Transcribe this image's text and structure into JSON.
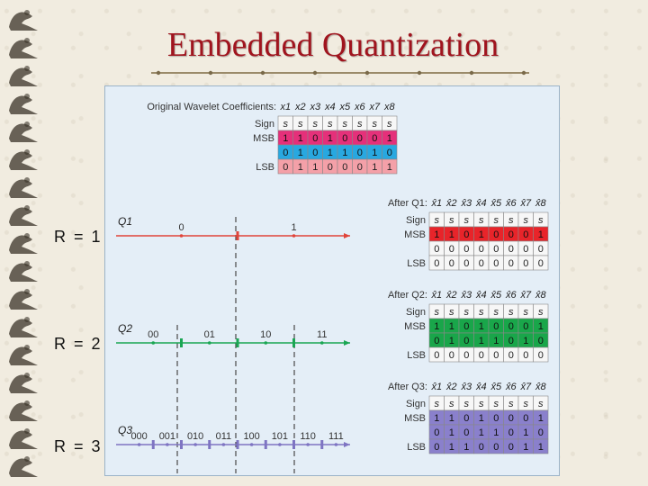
{
  "title": "Embedded Quantization",
  "rate_labels": [
    "R = 1",
    "R = 2",
    "R = 3"
  ],
  "original": {
    "heading": "Original Wavelet Coefficients:",
    "cols": [
      "x1",
      "x2",
      "x3",
      "x4",
      "x5",
      "x6",
      "x7",
      "x8"
    ],
    "rows": [
      {
        "label": "Sign",
        "cells": [
          "s",
          "s",
          "s",
          "s",
          "s",
          "s",
          "s",
          "s"
        ],
        "color": "#f7f7f7"
      },
      {
        "label": "MSB",
        "cells": [
          "1",
          "1",
          "0",
          "1",
          "0",
          "0",
          "0",
          "1"
        ],
        "color": "#e5307a"
      },
      {
        "label": "",
        "cells": [
          "0",
          "1",
          "0",
          "1",
          "1",
          "0",
          "1",
          "0"
        ],
        "color": "#28a8e0"
      },
      {
        "label": "LSB",
        "cells": [
          "0",
          "1",
          "1",
          "0",
          "0",
          "0",
          "1",
          "1"
        ],
        "color": "#f4a0a8"
      }
    ]
  },
  "quantizers": [
    {
      "axis_label": "Q1",
      "codes": [
        "0",
        "1"
      ],
      "line_color": "#e0443a",
      "table_heading": "After Q1:",
      "cols": [
        "x̂1",
        "x̂2",
        "x̂3",
        "x̂4",
        "x̂5",
        "x̂6",
        "x̂7",
        "x̂8"
      ],
      "rows": [
        {
          "label": "Sign",
          "cells": [
            "s",
            "s",
            "s",
            "s",
            "s",
            "s",
            "s",
            "s"
          ],
          "color": "#f7f7f7"
        },
        {
          "label": "MSB",
          "cells": [
            "1",
            "1",
            "0",
            "1",
            "0",
            "0",
            "0",
            "1"
          ],
          "color": "#e8242a"
        },
        {
          "label": "",
          "cells": [
            "0",
            "0",
            "0",
            "0",
            "0",
            "0",
            "0",
            "0"
          ],
          "color": "#f7f7f7"
        },
        {
          "label": "LSB",
          "cells": [
            "0",
            "0",
            "0",
            "0",
            "0",
            "0",
            "0",
            "0"
          ],
          "color": "#f7f7f7"
        }
      ]
    },
    {
      "axis_label": "Q2",
      "codes": [
        "00",
        "01",
        "10",
        "11"
      ],
      "line_color": "#1aa653",
      "table_heading": "After Q2:",
      "cols": [
        "x̂1",
        "x̂2",
        "x̂3",
        "x̂4",
        "x̂5",
        "x̂6",
        "x̂7",
        "x̂8"
      ],
      "rows": [
        {
          "label": "Sign",
          "cells": [
            "s",
            "s",
            "s",
            "s",
            "s",
            "s",
            "s",
            "s"
          ],
          "color": "#f7f7f7"
        },
        {
          "label": "MSB",
          "cells": [
            "1",
            "1",
            "0",
            "1",
            "0",
            "0",
            "0",
            "1"
          ],
          "color": "#19a64a"
        },
        {
          "label": "",
          "cells": [
            "0",
            "1",
            "0",
            "1",
            "1",
            "0",
            "1",
            "0"
          ],
          "color": "#19a64a"
        },
        {
          "label": "LSB",
          "cells": [
            "0",
            "0",
            "0",
            "0",
            "0",
            "0",
            "0",
            "0"
          ],
          "color": "#f7f7f7"
        }
      ]
    },
    {
      "axis_label": "Q3",
      "codes": [
        "000",
        "001",
        "010",
        "011",
        "100",
        "101",
        "110",
        "111"
      ],
      "line_color": "#7e74c2",
      "table_heading": "After Q3:",
      "cols": [
        "x̂1",
        "x̂2",
        "x̂3",
        "x̂4",
        "x̂5",
        "x̂6",
        "x̂7",
        "x̂8"
      ],
      "rows": [
        {
          "label": "Sign",
          "cells": [
            "s",
            "s",
            "s",
            "s",
            "s",
            "s",
            "s",
            "s"
          ],
          "color": "#f7f7f7"
        },
        {
          "label": "MSB",
          "cells": [
            "1",
            "1",
            "0",
            "1",
            "0",
            "0",
            "0",
            "1"
          ],
          "color": "#8a80cc"
        },
        {
          "label": "",
          "cells": [
            "0",
            "1",
            "0",
            "1",
            "1",
            "0",
            "1",
            "0"
          ],
          "color": "#8a80cc"
        },
        {
          "label": "LSB",
          "cells": [
            "0",
            "1",
            "1",
            "0",
            "0",
            "0",
            "1",
            "1"
          ],
          "color": "#8a80cc"
        }
      ]
    }
  ]
}
